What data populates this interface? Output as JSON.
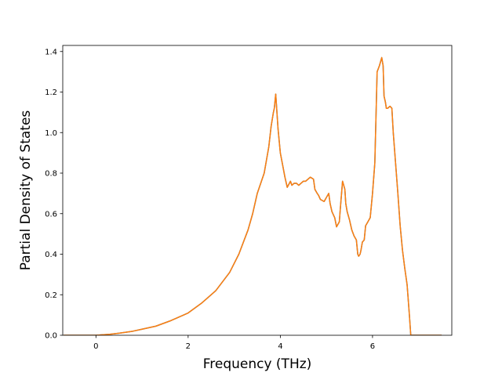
{
  "chart_data": {
    "type": "line",
    "title": "",
    "xlabel": "Frequency (THz)",
    "ylabel": "Partial Density of States",
    "xlim": [
      -0.72,
      7.72
    ],
    "ylim": [
      0.0,
      1.43
    ],
    "xticks": [
      0,
      2,
      4,
      6
    ],
    "xtick_labels": [
      "0",
      "2",
      "4",
      "6"
    ],
    "yticks": [
      0.0,
      0.2,
      0.4,
      0.6,
      0.8,
      1.0,
      1.2,
      1.4
    ],
    "ytick_labels": [
      "0.0",
      "0.2",
      "0.4",
      "0.6",
      "0.8",
      "1.0",
      "1.2",
      "1.4"
    ],
    "grid": false,
    "legend": "none",
    "series": [
      {
        "color": "#1f77b4",
        "x": [
          -0.7,
          0.0,
          0.3,
          0.5,
          0.8,
          1.0,
          1.3,
          1.6,
          1.9,
          2.0,
          2.3,
          2.6,
          2.9,
          3.1,
          3.3,
          3.4,
          3.5,
          3.65,
          3.75,
          3.8,
          3.85,
          3.87,
          3.9,
          3.95,
          4.0,
          4.05,
          4.1,
          4.15,
          4.22,
          4.25,
          4.3,
          4.35,
          4.4,
          4.45,
          4.5,
          4.55,
          4.65,
          4.72,
          4.75,
          4.8,
          4.83,
          4.87,
          4.95,
          5.0,
          5.05,
          5.08,
          5.12,
          5.18,
          5.22,
          5.28,
          5.3,
          5.35,
          5.4,
          5.42,
          5.45,
          5.5,
          5.55,
          5.6,
          5.65,
          5.68,
          5.7,
          5.73,
          5.75,
          5.78,
          5.82,
          5.85,
          5.9,
          5.95,
          6.0,
          6.05,
          6.1,
          6.15,
          6.2,
          6.23,
          6.25,
          6.28,
          6.3,
          6.33,
          6.38,
          6.42,
          6.45,
          6.5,
          6.55,
          6.6,
          6.65,
          6.7,
          6.75,
          6.8,
          6.83,
          6.85,
          6.9,
          7.2,
          7.5
        ],
        "y": [
          0.0,
          0.0,
          0.005,
          0.01,
          0.02,
          0.03,
          0.045,
          0.07,
          0.1,
          0.11,
          0.16,
          0.22,
          0.31,
          0.4,
          0.52,
          0.6,
          0.7,
          0.8,
          0.93,
          1.03,
          1.1,
          1.12,
          1.19,
          1.02,
          0.9,
          0.84,
          0.78,
          0.73,
          0.76,
          0.74,
          0.75,
          0.75,
          0.74,
          0.75,
          0.76,
          0.76,
          0.78,
          0.77,
          0.72,
          0.7,
          0.69,
          0.67,
          0.66,
          0.68,
          0.7,
          0.65,
          0.61,
          0.58,
          0.535,
          0.56,
          0.62,
          0.76,
          0.72,
          0.65,
          0.61,
          0.57,
          0.52,
          0.49,
          0.47,
          0.4,
          0.39,
          0.4,
          0.42,
          0.46,
          0.47,
          0.54,
          0.56,
          0.58,
          0.7,
          0.85,
          1.3,
          1.33,
          1.37,
          1.33,
          1.18,
          1.15,
          1.12,
          1.12,
          1.13,
          1.12,
          1.0,
          0.85,
          0.7,
          0.54,
          0.42,
          0.33,
          0.25,
          0.1,
          0.0,
          0.0,
          0.0,
          0.0,
          0.0
        ]
      },
      {
        "color": "#ff7f0e",
        "x": [
          -0.7,
          0.0,
          0.3,
          0.5,
          0.8,
          1.0,
          1.3,
          1.6,
          1.9,
          2.0,
          2.3,
          2.6,
          2.9,
          3.1,
          3.3,
          3.4,
          3.5,
          3.65,
          3.75,
          3.8,
          3.85,
          3.87,
          3.9,
          3.95,
          4.0,
          4.05,
          4.1,
          4.15,
          4.22,
          4.25,
          4.3,
          4.35,
          4.4,
          4.45,
          4.5,
          4.55,
          4.65,
          4.72,
          4.75,
          4.8,
          4.83,
          4.87,
          4.95,
          5.0,
          5.05,
          5.08,
          5.12,
          5.18,
          5.22,
          5.28,
          5.3,
          5.35,
          5.4,
          5.42,
          5.45,
          5.5,
          5.55,
          5.6,
          5.65,
          5.68,
          5.7,
          5.73,
          5.75,
          5.78,
          5.82,
          5.85,
          5.9,
          5.95,
          6.0,
          6.05,
          6.1,
          6.15,
          6.2,
          6.23,
          6.25,
          6.28,
          6.3,
          6.33,
          6.38,
          6.42,
          6.45,
          6.5,
          6.55,
          6.6,
          6.65,
          6.7,
          6.75,
          6.8,
          6.83,
          6.85,
          6.9,
          7.2,
          7.5
        ],
        "y": [
          0.0,
          0.0,
          0.005,
          0.01,
          0.02,
          0.03,
          0.045,
          0.07,
          0.1,
          0.11,
          0.16,
          0.22,
          0.31,
          0.4,
          0.52,
          0.6,
          0.7,
          0.8,
          0.93,
          1.03,
          1.1,
          1.12,
          1.19,
          1.02,
          0.9,
          0.84,
          0.78,
          0.73,
          0.76,
          0.74,
          0.75,
          0.75,
          0.74,
          0.75,
          0.76,
          0.76,
          0.78,
          0.77,
          0.72,
          0.7,
          0.69,
          0.67,
          0.66,
          0.68,
          0.7,
          0.65,
          0.61,
          0.58,
          0.535,
          0.56,
          0.62,
          0.76,
          0.72,
          0.65,
          0.61,
          0.57,
          0.52,
          0.49,
          0.47,
          0.4,
          0.39,
          0.4,
          0.42,
          0.46,
          0.47,
          0.54,
          0.56,
          0.58,
          0.7,
          0.85,
          1.3,
          1.33,
          1.37,
          1.33,
          1.18,
          1.15,
          1.12,
          1.12,
          1.13,
          1.12,
          1.0,
          0.85,
          0.7,
          0.54,
          0.42,
          0.33,
          0.25,
          0.1,
          0.0,
          0.0,
          0.0,
          0.0,
          0.0
        ]
      }
    ]
  }
}
